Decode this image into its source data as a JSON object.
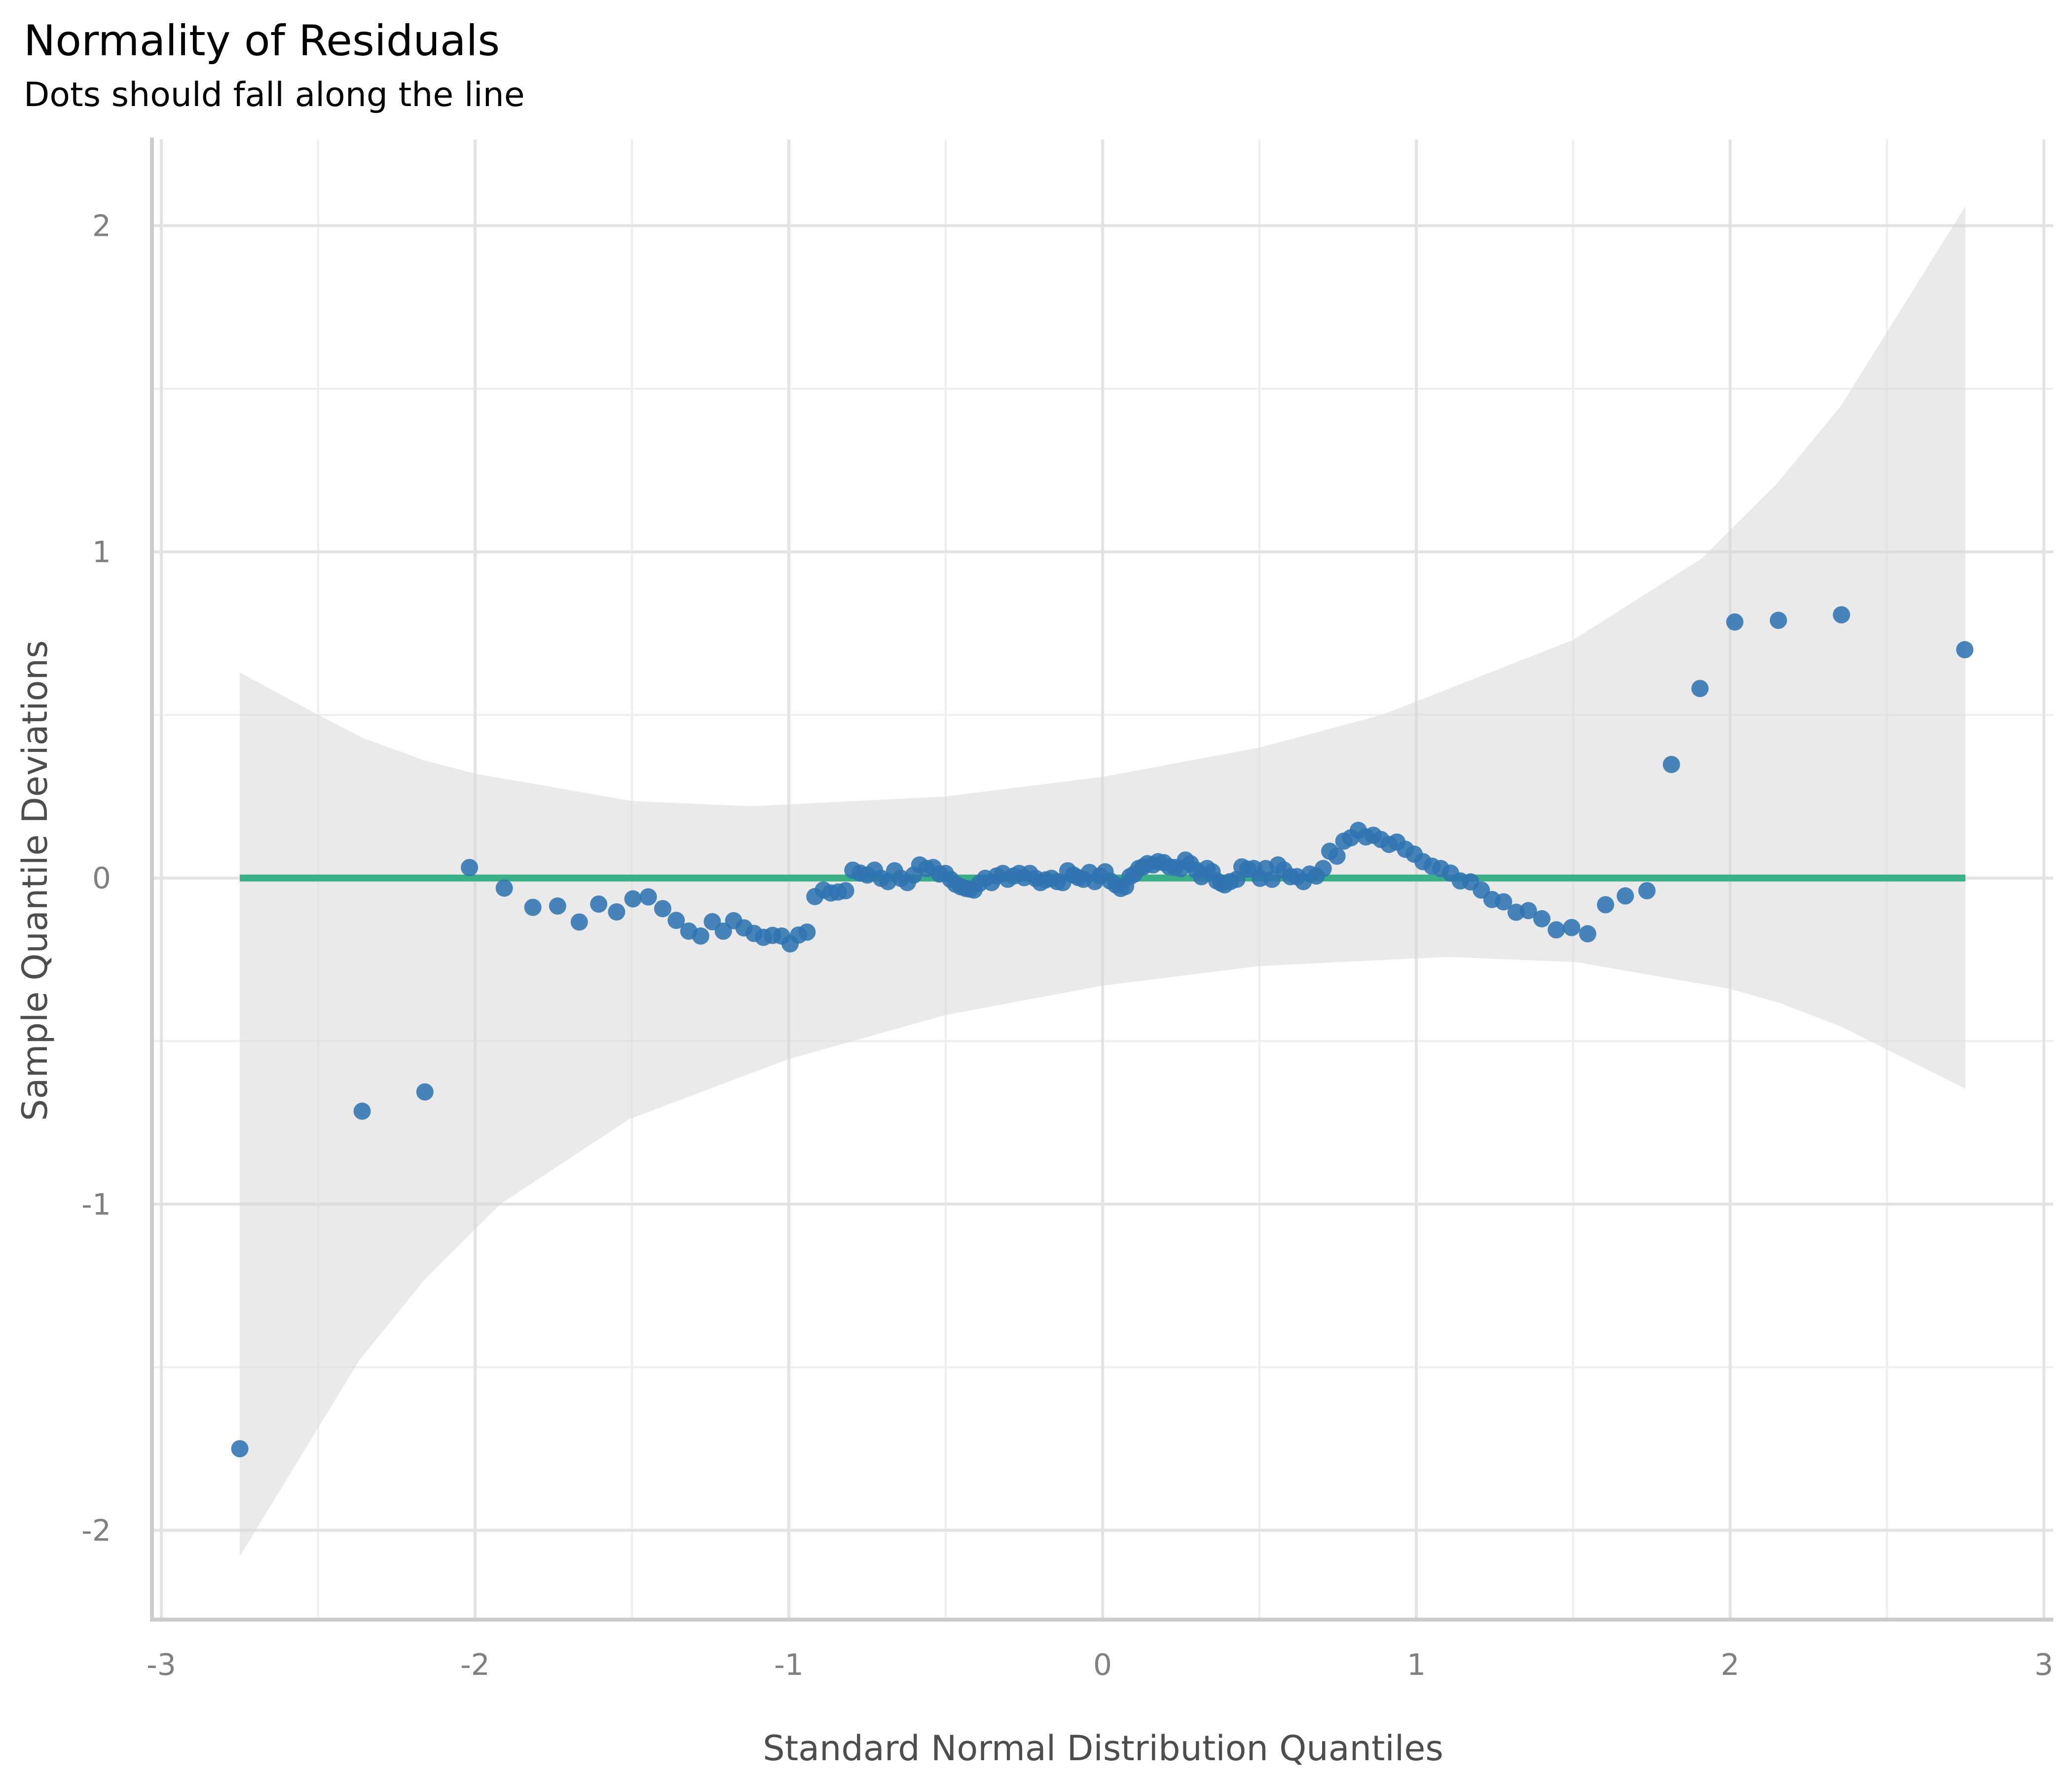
{
  "chart_data": {
    "type": "scatter",
    "title": "Normality of Residuals",
    "subtitle": "Dots should fall along the line",
    "xlabel": "Standard Normal Distribution Quantiles",
    "ylabel": "Sample Quantile Deviations",
    "xlim": [
      -3.03,
      3.03
    ],
    "ylim": [
      -2.28,
      2.27
    ],
    "x_ticks": [
      -3,
      -2,
      -1,
      0,
      1,
      2,
      3
    ],
    "x_tick_labels": [
      "-3",
      "-2",
      "-1",
      "0",
      "1",
      "2",
      "3"
    ],
    "y_ticks": [
      -2,
      -1,
      0,
      1,
      2
    ],
    "y_tick_labels": [
      "-2",
      "-1",
      "0",
      "1",
      "2"
    ],
    "x_minor_ticks": [
      -2.5,
      -1.5,
      -0.5,
      0.5,
      1.5,
      2.5
    ],
    "y_minor_ticks": [
      -1.5,
      -0.5,
      0.5,
      1.5
    ],
    "grid": true,
    "legend": "none",
    "colors": {
      "points": "#2f74b0",
      "reference_line": "#3aaf85",
      "confidence_band": "#d9d9d9"
    },
    "reference_line": {
      "y": 0,
      "x_range": [
        -2.75,
        2.75
      ]
    },
    "confidence_band": {
      "upper": [
        [
          -2.75,
          0.63
        ],
        [
          -2.5,
          0.5
        ],
        [
          -2.36,
          0.43
        ],
        [
          -2.16,
          0.36
        ],
        [
          -2.0,
          0.32
        ],
        [
          -1.5,
          0.236
        ],
        [
          -1.12,
          0.22
        ],
        [
          -0.5,
          0.25
        ],
        [
          0.0,
          0.31
        ],
        [
          0.5,
          0.4
        ],
        [
          0.89,
          0.5
        ],
        [
          1.5,
          0.73
        ],
        [
          1.91,
          0.98
        ],
        [
          2.15,
          1.21
        ],
        [
          2.355,
          1.45
        ],
        [
          2.75,
          2.06
        ]
      ],
      "lower": [
        [
          -2.75,
          -2.08
        ],
        [
          -2.37,
          -1.48
        ],
        [
          -2.16,
          -1.23
        ],
        [
          -1.92,
          -1.0
        ],
        [
          -1.51,
          -0.74
        ],
        [
          -1.0,
          -0.555
        ],
        [
          -0.5,
          -0.42
        ],
        [
          0.0,
          -0.33
        ],
        [
          0.5,
          -0.27
        ],
        [
          1.1,
          -0.242
        ],
        [
          1.51,
          -0.258
        ],
        [
          2.0,
          -0.34
        ],
        [
          2.16,
          -0.384
        ],
        [
          2.35,
          -0.454
        ],
        [
          2.75,
          -0.646
        ]
      ]
    },
    "points": [
      [
        -2.75,
        -1.75
      ],
      [
        -2.36,
        -0.715
      ],
      [
        -2.16,
        -0.656
      ],
      [
        -2.018,
        0.032
      ],
      [
        -1.907,
        -0.031
      ],
      [
        -1.816,
        -0.09
      ],
      [
        -1.737,
        -0.086
      ],
      [
        -1.668,
        -0.135
      ],
      [
        -1.606,
        -0.08
      ],
      [
        -1.549,
        -0.104
      ],
      [
        -1.497,
        -0.064
      ],
      [
        -1.448,
        -0.058
      ],
      [
        -1.402,
        -0.094
      ],
      [
        -1.359,
        -0.13
      ],
      [
        -1.319,
        -0.163
      ],
      [
        -1.281,
        -0.178
      ],
      [
        -1.244,
        -0.134
      ],
      [
        -1.209,
        -0.163
      ],
      [
        -1.176,
        -0.131
      ],
      [
        -1.143,
        -0.153
      ],
      [
        -1.111,
        -0.17
      ],
      [
        -1.081,
        -0.182
      ],
      [
        -1.052,
        -0.176
      ],
      [
        -1.023,
        -0.178
      ],
      [
        -0.996,
        -0.202
      ],
      [
        -0.969,
        -0.175
      ],
      [
        -0.942,
        -0.166
      ],
      [
        -0.917,
        -0.057
      ],
      [
        -0.89,
        -0.037
      ],
      [
        -0.866,
        -0.046
      ],
      [
        -0.843,
        -0.043
      ],
      [
        -0.819,
        -0.039
      ],
      [
        -0.796,
        0.024
      ],
      [
        -0.773,
        0.015
      ],
      [
        -0.75,
        0.009
      ],
      [
        -0.727,
        0.024
      ],
      [
        -0.706,
        -0.001
      ],
      [
        -0.684,
        -0.011
      ],
      [
        -0.663,
        0.022
      ],
      [
        -0.643,
        -0.001
      ],
      [
        -0.622,
        -0.014
      ],
      [
        -0.602,
        0.009
      ],
      [
        -0.583,
        0.04
      ],
      [
        -0.561,
        0.029
      ],
      [
        -0.54,
        0.032
      ],
      [
        -0.52,
        0.012
      ],
      [
        -0.501,
        0.014
      ],
      [
        -0.485,
        -0.004
      ],
      [
        -0.469,
        -0.019
      ],
      [
        -0.452,
        -0.027
      ],
      [
        -0.436,
        -0.032
      ],
      [
        -0.423,
        -0.034
      ],
      [
        -0.41,
        -0.037
      ],
      [
        -0.393,
        -0.017
      ],
      [
        -0.374,
        -0.001
      ],
      [
        -0.354,
        -0.014
      ],
      [
        -0.338,
        0.006
      ],
      [
        -0.318,
        0.014
      ],
      [
        -0.302,
        -0.004
      ],
      [
        -0.283,
        0.006
      ],
      [
        -0.266,
        0.014
      ],
      [
        -0.25,
        0.001
      ],
      [
        -0.232,
        0.014
      ],
      [
        -0.214,
        -0.001
      ],
      [
        -0.198,
        -0.014
      ],
      [
        -0.182,
        -0.006
      ],
      [
        -0.163,
        -0.001
      ],
      [
        -0.145,
        -0.011
      ],
      [
        -0.127,
        -0.014
      ],
      [
        -0.111,
        0.022
      ],
      [
        -0.093,
        0.009
      ],
      [
        -0.077,
        0.001
      ],
      [
        -0.061,
        -0.004
      ],
      [
        -0.042,
        0.017
      ],
      [
        -0.025,
        -0.011
      ],
      [
        -0.008,
        0.006
      ],
      [
        0.008,
        0.019
      ],
      [
        0.024,
        -0.009
      ],
      [
        0.042,
        -0.021
      ],
      [
        0.058,
        -0.032
      ],
      [
        0.073,
        -0.026
      ],
      [
        0.087,
        0.004
      ],
      [
        0.101,
        0.012
      ],
      [
        0.115,
        0.029
      ],
      [
        0.129,
        0.034
      ],
      [
        0.143,
        0.044
      ],
      [
        0.161,
        0.04
      ],
      [
        0.177,
        0.05
      ],
      [
        0.195,
        0.047
      ],
      [
        0.213,
        0.034
      ],
      [
        0.231,
        0.032
      ],
      [
        0.249,
        0.029
      ],
      [
        0.264,
        0.055
      ],
      [
        0.28,
        0.044
      ],
      [
        0.298,
        0.024
      ],
      [
        0.315,
        0.004
      ],
      [
        0.333,
        0.029
      ],
      [
        0.349,
        0.019
      ],
      [
        0.364,
        -0.009
      ],
      [
        0.378,
        -0.016
      ],
      [
        0.389,
        -0.021
      ],
      [
        0.407,
        -0.011
      ],
      [
        0.428,
        -0.004
      ],
      [
        0.444,
        0.034
      ],
      [
        0.463,
        0.027
      ],
      [
        0.482,
        0.029
      ],
      [
        0.502,
        -0.001
      ],
      [
        0.52,
        0.029
      ],
      [
        0.54,
        -0.004
      ],
      [
        0.559,
        0.04
      ],
      [
        0.578,
        0.024
      ],
      [
        0.599,
        0.004
      ],
      [
        0.62,
        0.004
      ],
      [
        0.64,
        -0.011
      ],
      [
        0.66,
        0.012
      ],
      [
        0.681,
        0.006
      ],
      [
        0.703,
        0.029
      ],
      [
        0.724,
        0.082
      ],
      [
        0.747,
        0.067
      ],
      [
        0.769,
        0.113
      ],
      [
        0.791,
        0.123
      ],
      [
        0.815,
        0.146
      ],
      [
        0.839,
        0.126
      ],
      [
        0.863,
        0.131
      ],
      [
        0.887,
        0.118
      ],
      [
        0.913,
        0.103
      ],
      [
        0.938,
        0.11
      ],
      [
        0.965,
        0.088
      ],
      [
        0.993,
        0.073
      ],
      [
        1.021,
        0.05
      ],
      [
        1.05,
        0.036
      ],
      [
        1.078,
        0.029
      ],
      [
        1.109,
        0.015
      ],
      [
        1.14,
        -0.009
      ],
      [
        1.173,
        -0.012
      ],
      [
        1.207,
        -0.037
      ],
      [
        1.241,
        -0.066
      ],
      [
        1.278,
        -0.073
      ],
      [
        1.318,
        -0.105
      ],
      [
        1.357,
        -0.1
      ],
      [
        1.4,
        -0.125
      ],
      [
        1.446,
        -0.159
      ],
      [
        1.495,
        -0.152
      ],
      [
        1.546,
        -0.171
      ],
      [
        1.603,
        -0.082
      ],
      [
        1.666,
        -0.055
      ],
      [
        1.735,
        -0.039
      ],
      [
        1.813,
        0.348
      ],
      [
        1.904,
        0.581
      ],
      [
        2.015,
        0.785
      ],
      [
        2.154,
        0.79
      ],
      [
        2.355,
        0.807
      ],
      [
        2.748,
        0.7
      ]
    ]
  }
}
